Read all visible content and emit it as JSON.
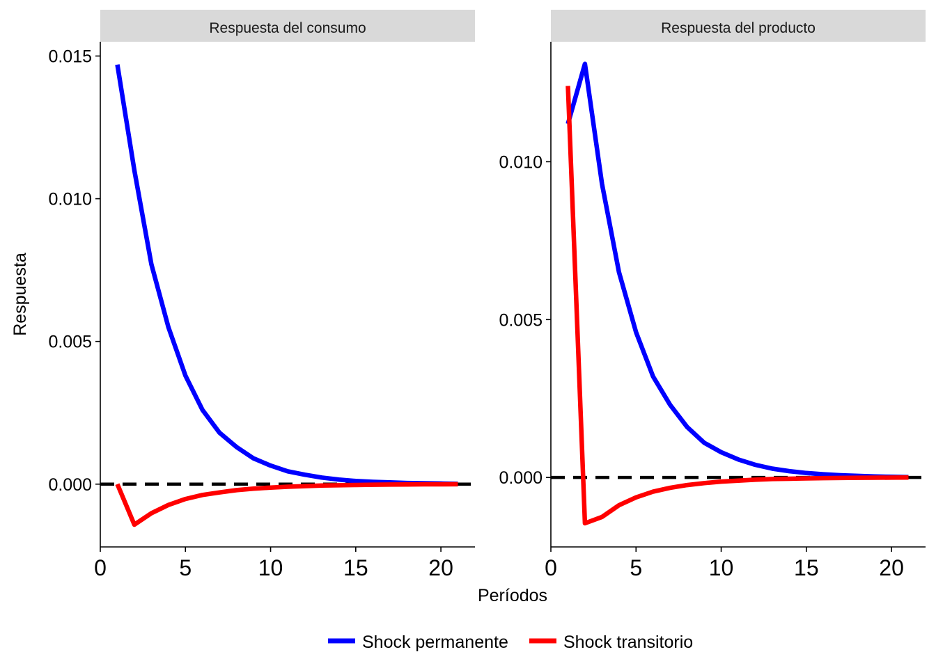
{
  "chart_data": {
    "type": "line",
    "ylabel": "Respuesta",
    "xlabel": "Períodos",
    "legend_position": "bottom",
    "baseline": 0,
    "colors": {
      "Shock permanente": "#0000ff",
      "Shock transitorio": "#ff0000",
      "baseline": "#000000"
    },
    "panels": [
      {
        "title": "Respuesta del consumo",
        "xlim": [
          0,
          22
        ],
        "ylim": [
          -0.0022,
          0.0155
        ],
        "x_ticks": [
          0,
          5,
          10,
          15,
          20
        ],
        "x_tick_labels": [
          "0",
          "5",
          "10",
          "15",
          "20"
        ],
        "y_ticks": [
          0,
          0.005,
          0.01,
          0.015
        ],
        "y_tick_labels": [
          "0.000",
          "0.005",
          "0.010",
          "0.015"
        ],
        "x": [
          1,
          2,
          3,
          4,
          5,
          6,
          7,
          8,
          9,
          10,
          11,
          12,
          13,
          14,
          15,
          16,
          17,
          18,
          19,
          20,
          21
        ],
        "series": [
          {
            "name": "Shock permanente",
            "values": [
              0.0147,
              0.011,
              0.0077,
              0.0055,
              0.0038,
              0.0026,
              0.0018,
              0.0013,
              0.0009,
              0.00065,
              0.00045,
              0.00033,
              0.00023,
              0.00016,
              0.00011,
              8e-05,
              6e-05,
              4e-05,
              3e-05,
              2e-05,
              1e-05
            ]
          },
          {
            "name": "Shock transitorio",
            "values": [
              0.0,
              -0.00142,
              -0.00102,
              -0.00073,
              -0.00052,
              -0.00038,
              -0.00029,
              -0.00021,
              -0.00016,
              -0.00012,
              -9e-05,
              -7e-05,
              -5e-05,
              -4e-05,
              -3e-05,
              -2e-05,
              -1.5e-05,
              -1e-05,
              -7e-06,
              -5e-06,
              -3e-06
            ]
          }
        ]
      },
      {
        "title": "Respuesta del producto",
        "xlim": [
          0,
          22
        ],
        "ylim": [
          -0.0022,
          0.0138
        ],
        "x_ticks": [
          0,
          5,
          10,
          15,
          20
        ],
        "x_tick_labels": [
          "0",
          "5",
          "10",
          "15",
          "20"
        ],
        "y_ticks": [
          0,
          0.005,
          0.01
        ],
        "y_tick_labels": [
          "0.000",
          "0.005",
          "0.010"
        ],
        "x": [
          1,
          2,
          3,
          4,
          5,
          6,
          7,
          8,
          9,
          10,
          11,
          12,
          13,
          14,
          15,
          16,
          17,
          18,
          19,
          20,
          21
        ],
        "series": [
          {
            "name": "Shock permanente",
            "values": [
              0.0112,
              0.0131,
              0.0093,
              0.0065,
              0.0046,
              0.0032,
              0.0023,
              0.0016,
              0.0011,
              0.0008,
              0.00057,
              0.0004,
              0.00028,
              0.0002,
              0.00014,
              0.0001,
              7e-05,
              5e-05,
              3e-05,
              2e-05,
              1e-05
            ]
          },
          {
            "name": "Shock transitorio",
            "values": [
              0.0124,
              -0.00145,
              -0.00125,
              -0.00088,
              -0.00063,
              -0.00045,
              -0.00033,
              -0.00024,
              -0.00018,
              -0.00013,
              -0.0001,
              -7e-05,
              -5e-05,
              -4e-05,
              -3e-05,
              -2e-05,
              -1.5e-05,
              -1e-05,
              -7e-06,
              -5e-06,
              -3e-06
            ]
          }
        ]
      }
    ]
  }
}
